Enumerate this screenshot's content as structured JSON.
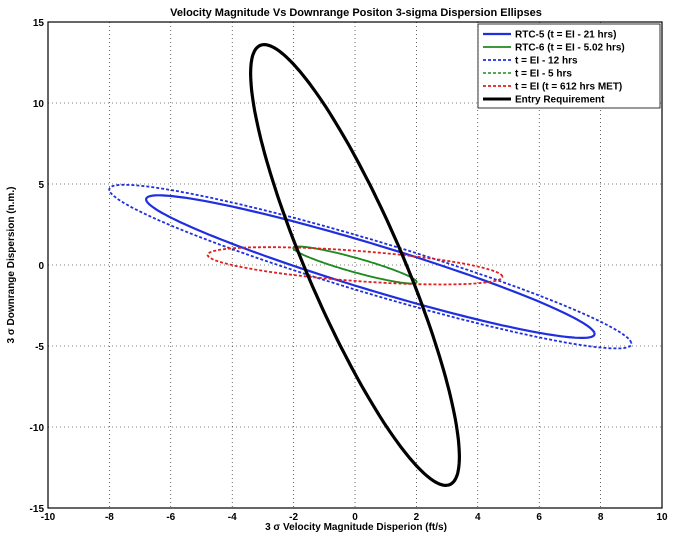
{
  "chart_data": {
    "type": "line",
    "title": "Velocity Magnitude Vs Downrange Positon 3-sigma Dispersion Ellipses",
    "xlabel": "3 σ Velocity Magnitude Disperion (ft/s)",
    "ylabel": "3 σ Downrange Dispersion (n.m.)",
    "xlim": [
      -10,
      10
    ],
    "ylim": [
      -15,
      15
    ],
    "xticks": [
      -10,
      -8,
      -6,
      -4,
      -2,
      0,
      2,
      4,
      6,
      8,
      10
    ],
    "yticks": [
      -15,
      -10,
      -5,
      0,
      5,
      10,
      15
    ],
    "grid": true,
    "legend_position": "top-right",
    "series": [
      {
        "name": "RTC-5 (t = EI - 21 hrs)",
        "color": "#1f2fe0",
        "style": "solid",
        "width": 2.2,
        "cx": 0.5,
        "cy": -0.1,
        "rx_end": [
          7.3,
          -4.1
        ],
        "ry_end": [
          -0.25,
          1.6
        ]
      },
      {
        "name": "RTC-6 (t = EI - 5.02 hrs)",
        "color": "#1f8a1f",
        "style": "solid",
        "width": 1.8,
        "cx": 0.0,
        "cy": 0.0,
        "rx_end": [
          2.0,
          -1.0
        ],
        "ry_end": [
          -0.18,
          0.55
        ]
      },
      {
        "name": "t = EI - 12 hrs",
        "color": "#1f2fe0",
        "style": "dashed",
        "width": 1.8,
        "cx": 0.5,
        "cy": -0.1,
        "rx_end": [
          8.5,
          -4.7
        ],
        "ry_end": [
          -0.28,
          1.85
        ]
      },
      {
        "name": "t = EI - 5 hrs",
        "color": "#1f8a1f",
        "style": "dashed",
        "width": 1.6,
        "cx": 0.0,
        "cy": 0.0,
        "rx_end": [
          2.0,
          -1.0
        ],
        "ry_end": [
          -0.18,
          0.55
        ]
      },
      {
        "name": "t = EI (t = 612 hrs MET)",
        "color": "#e01f1f",
        "style": "dashed",
        "width": 1.8,
        "cx": 0.0,
        "cy": -0.05,
        "rx_end": [
          4.8,
          -0.65
        ],
        "ry_end": [
          -0.12,
          0.95
        ]
      },
      {
        "name": "Entry Requirement",
        "color": "#000000",
        "style": "solid",
        "width": 3.2,
        "cx": 0.0,
        "cy": 0.0,
        "rx_end": [
          3.0,
          -13.6
        ],
        "ry_end": [
          -1.6,
          -0.353
        ]
      }
    ]
  }
}
